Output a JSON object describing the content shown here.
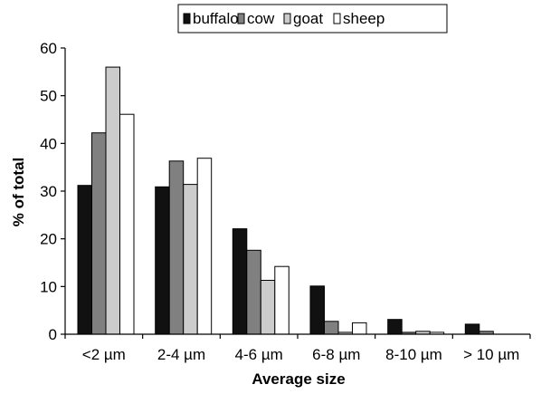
{
  "chart_data": {
    "type": "bar",
    "categories": [
      "<2 µm",
      "2-4 µm",
      "4-6 µm",
      "6-8 µm",
      "8-10 µm",
      "> 10 µm"
    ],
    "series": [
      {
        "name": "buffalo",
        "color": "#111111",
        "values": [
          31.2,
          30.9,
          22.1,
          10.1,
          3.1,
          2.1
        ]
      },
      {
        "name": "cow",
        "color": "#808080",
        "values": [
          42.2,
          36.3,
          17.6,
          2.7,
          0.4,
          0.6
        ]
      },
      {
        "name": "goat",
        "color": "#cccccc",
        "values": [
          56.0,
          31.4,
          11.3,
          0.4,
          0.6,
          0.0
        ]
      },
      {
        "name": "sheep",
        "color": "#ffffff",
        "values": [
          46.1,
          36.9,
          14.2,
          2.4,
          0.4,
          0.0
        ]
      }
    ],
    "xlabel": "Average size",
    "ylabel": "% of total",
    "ylim": [
      0,
      60
    ],
    "yticks": [
      0,
      10,
      20,
      30,
      40,
      50,
      60
    ],
    "grid": false,
    "legend_position": "top-center"
  }
}
